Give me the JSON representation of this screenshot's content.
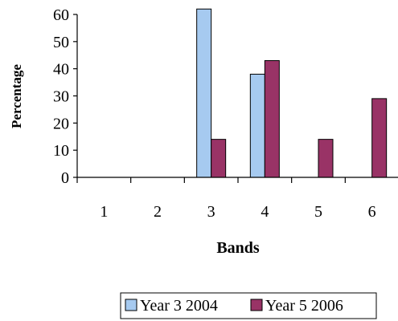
{
  "chart_data": {
    "type": "bar",
    "title": "",
    "xlabel": "Bands",
    "ylabel": "Percentage",
    "categories": [
      "1",
      "2",
      "3",
      "4",
      "5",
      "6"
    ],
    "series": [
      {
        "name": "Year 3 2004",
        "values": [
          0,
          0,
          62,
          38,
          0,
          0
        ],
        "color": "#A6CAF0"
      },
      {
        "name": "Year 5 2006",
        "values": [
          0,
          0,
          14,
          43,
          14,
          29
        ],
        "color": "#993366"
      }
    ],
    "ylim": [
      0,
      60
    ],
    "yticks": [
      "0",
      "10",
      "20",
      "30",
      "40",
      "50",
      "60"
    ],
    "grid": false,
    "legend": "bottom"
  }
}
